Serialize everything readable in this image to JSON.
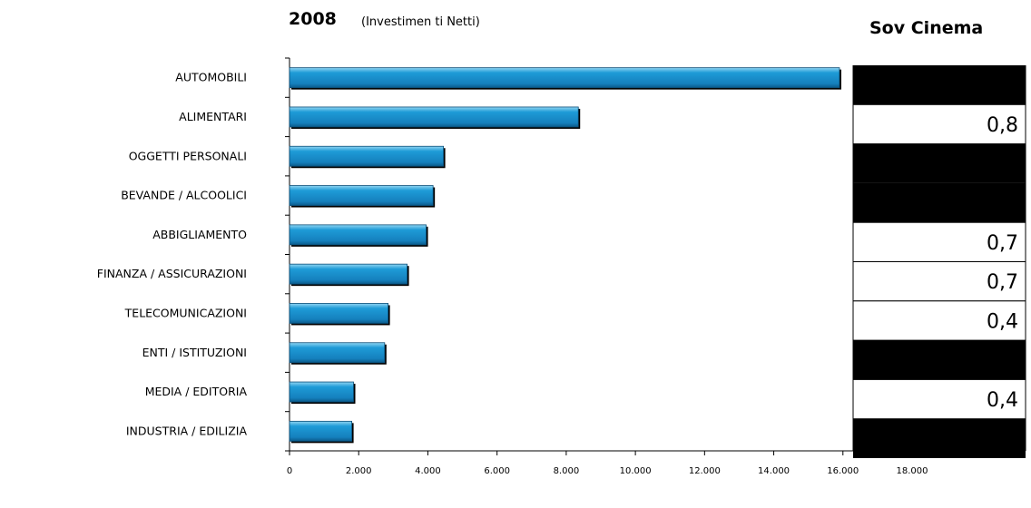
{
  "header": {
    "year": "2008",
    "subtitle": "(Investimen ti  Netti)",
    "sov_title": "Sov Cinema"
  },
  "chart_data": {
    "type": "bar",
    "orientation": "horizontal",
    "title": "2008",
    "subtitle": "(Investimen ti  Netti)",
    "categories": [
      "AUTOMOBILI",
      "ALIMENTARI",
      "OGGETTI PERSONALI",
      "BEVANDE / ALCOOLICI",
      "ABBIGLIAMENTO",
      "FINANZA / ASSICURAZIONI",
      "TELECOMUNICAZIONI",
      "ENTI / ISTITUZIONI",
      "MEDIA / EDITORIA",
      "INDUSTRIA / EDILIZIA"
    ],
    "values": [
      15900,
      8350,
      4450,
      4150,
      3950,
      3400,
      2850,
      2750,
      1850,
      1800
    ],
    "xlim": [
      0,
      18000
    ],
    "x_ticks": [
      "0",
      "2.000",
      "4.000",
      "6.000",
      "8.000",
      "10.000",
      "12.000",
      "14.000",
      "16.000",
      "18.000"
    ],
    "bar_color": "#1e9bd7",
    "sov_cinema": {
      "title": "Sov Cinema",
      "rows": [
        {
          "value": "",
          "filled": true
        },
        {
          "value": "0,8",
          "filled": false
        },
        {
          "value": "",
          "filled": true
        },
        {
          "value": "",
          "filled": true
        },
        {
          "value": "0,7",
          "filled": false
        },
        {
          "value": "0,7",
          "filled": false
        },
        {
          "value": "0,4",
          "filled": false
        },
        {
          "value": "",
          "filled": true
        },
        {
          "value": "0,4",
          "filled": false
        },
        {
          "value": "",
          "filled": true
        }
      ]
    }
  }
}
